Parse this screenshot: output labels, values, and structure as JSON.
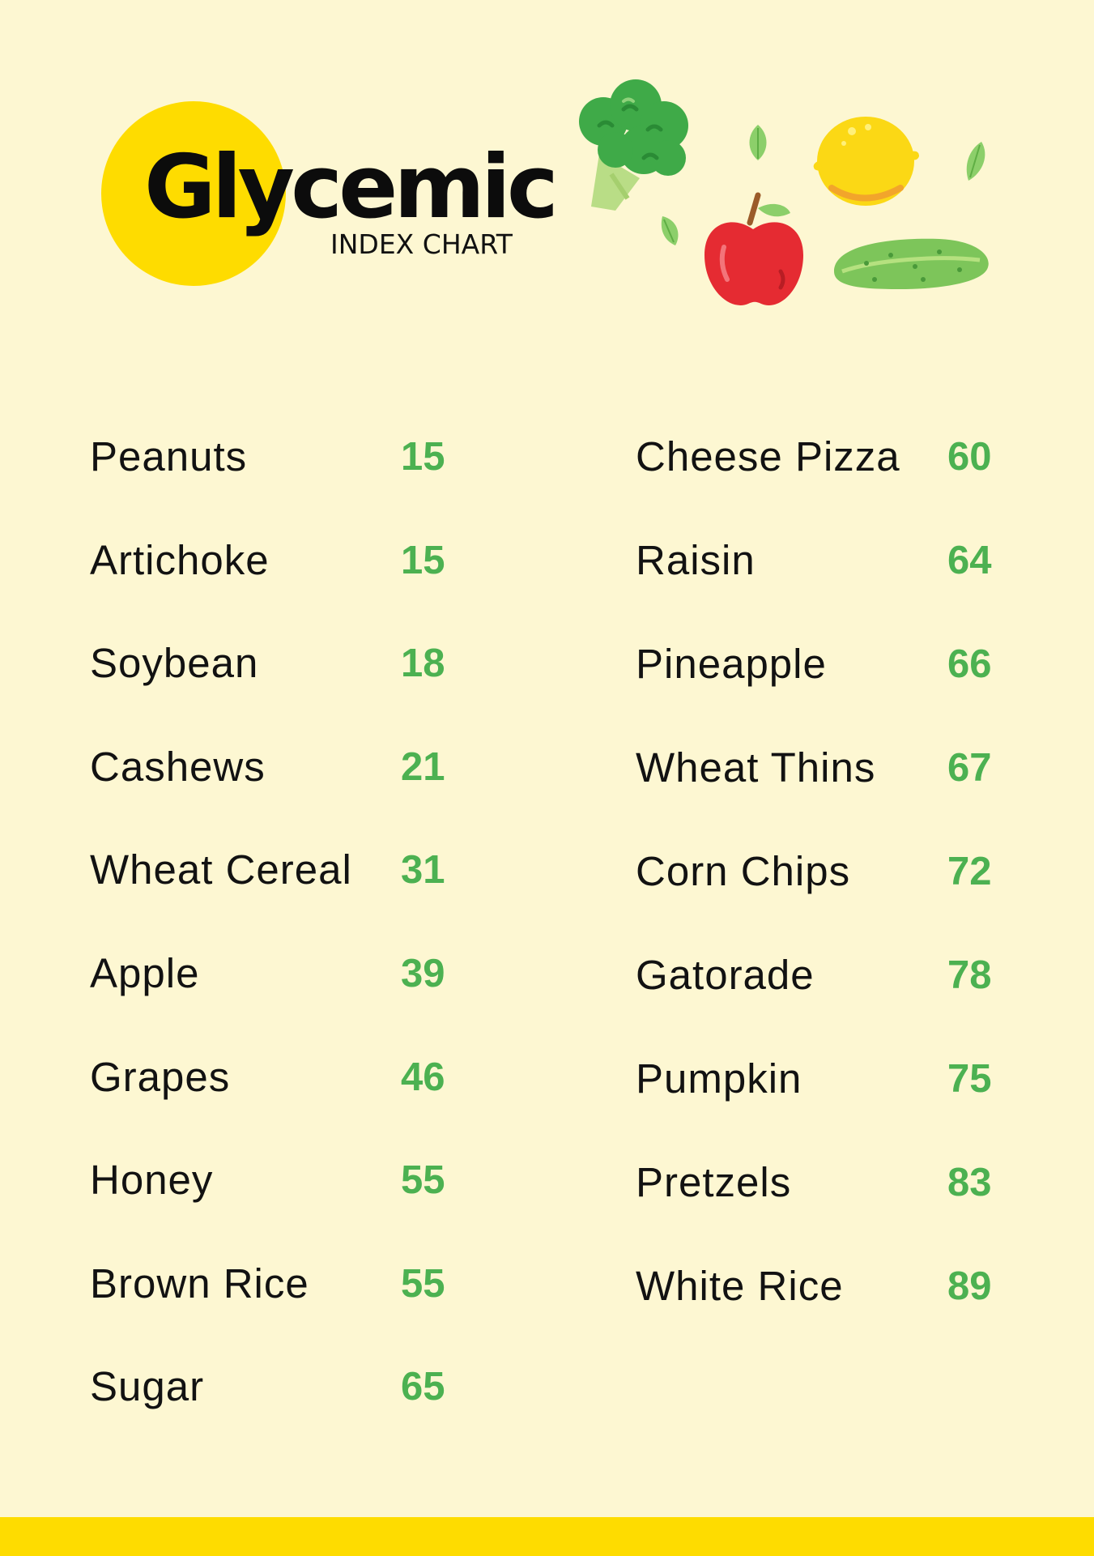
{
  "header": {
    "title": "Glycemic",
    "subtitle": "INDEX CHART"
  },
  "illustration": {
    "icons": [
      "broccoli-icon",
      "lemon-icon",
      "apple-icon",
      "cucumber-icon",
      "leaf-icon"
    ],
    "colors": {
      "green": "#4cb151",
      "dark_green": "#2f8f3a",
      "yellow": "#fedc00",
      "red": "#e52b32"
    }
  },
  "left_column": [
    {
      "name": "Peanuts",
      "value": "15"
    },
    {
      "name": "Artichoke",
      "value": "15"
    },
    {
      "name": "Soybean",
      "value": "18"
    },
    {
      "name": "Cashews",
      "value": "21"
    },
    {
      "name": "Wheat Cereal",
      "value": "31"
    },
    {
      "name": "Apple",
      "value": "39"
    },
    {
      "name": "Grapes",
      "value": "46"
    },
    {
      "name": "Honey",
      "value": "55"
    },
    {
      "name": "Brown Rice",
      "value": "55"
    },
    {
      "name": "Sugar",
      "value": "65"
    }
  ],
  "right_column": [
    {
      "name": "Cheese Pizza",
      "value": "60"
    },
    {
      "name": "Raisin",
      "value": "64"
    },
    {
      "name": "Pineapple",
      "value": "66"
    },
    {
      "name": "Wheat Thins",
      "value": "67"
    },
    {
      "name": "Corn Chips",
      "value": "72"
    },
    {
      "name": "Gatorade",
      "value": "78"
    },
    {
      "name": "Pumpkin",
      "value": "75"
    },
    {
      "name": "Pretzels",
      "value": "83"
    },
    {
      "name": "White Rice",
      "value": "89"
    }
  ],
  "colors": {
    "background": "#fdf7d2",
    "accent_yellow": "#fedc00",
    "value_green": "#4cb151",
    "text": "#121212"
  }
}
